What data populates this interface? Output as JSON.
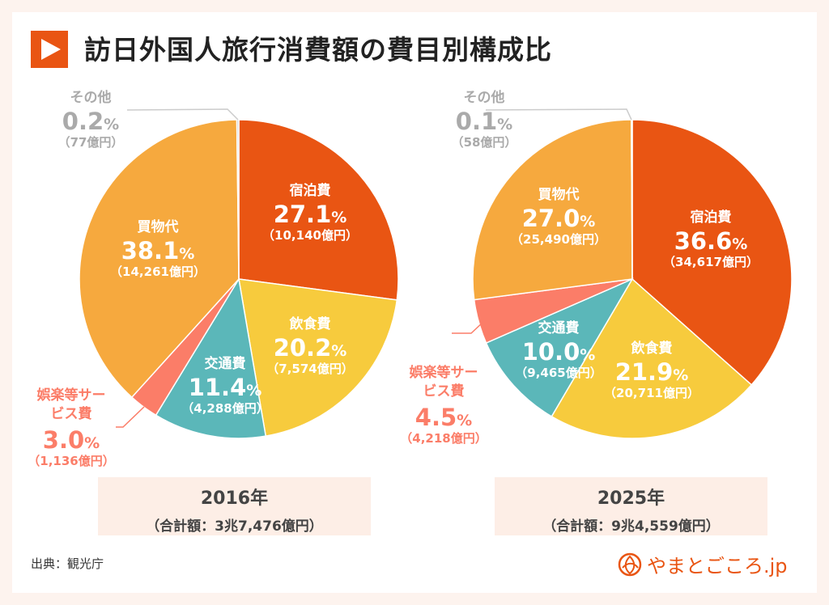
{
  "title": "訪日外国人旅行消費額の費目別構成比",
  "source": "出典：観光庁",
  "logo_text": "やまとごころ.jp",
  "colors": {
    "宿泊費": "#e95513",
    "飲食費": "#f7cb3d",
    "交通費": "#5bb7b9",
    "娯楽等サービス費": "#fb7d68",
    "買物代": "#f6a93e",
    "その他": "#cccccc",
    "accent": "#e95513"
  },
  "chart_data": [
    {
      "type": "pie",
      "year_label": "2016年",
      "total_label": "（合計額：3兆7,476億円）",
      "slices": [
        {
          "name": "宿泊費",
          "percent": 27.1,
          "pct_label": "27.1",
          "amount": "（10,140億円）"
        },
        {
          "name": "飲食費",
          "percent": 20.2,
          "pct_label": "20.2",
          "amount": "（7,574億円）"
        },
        {
          "name": "交通費",
          "percent": 11.4,
          "pct_label": "11.4",
          "amount": "（4,288億円）"
        },
        {
          "name": "娯楽等サービス費",
          "percent": 3.0,
          "pct_label": "3.0",
          "amount": "（1,136億円）"
        },
        {
          "name": "買物代",
          "percent": 38.1,
          "pct_label": "38.1",
          "amount": "（14,261億円）"
        },
        {
          "name": "その他",
          "percent": 0.2,
          "pct_label": "0.2",
          "amount": "（77億円）"
        }
      ]
    },
    {
      "type": "pie",
      "year_label": "2025年",
      "total_label": "（合計額：9兆4,559億円）",
      "slices": [
        {
          "name": "宿泊費",
          "percent": 36.6,
          "pct_label": "36.6",
          "amount": "（34,617億円）"
        },
        {
          "name": "飲食費",
          "percent": 21.9,
          "pct_label": "21.9",
          "amount": "（20,711億円）"
        },
        {
          "name": "交通費",
          "percent": 10.0,
          "pct_label": "10.0",
          "amount": "（9,465億円）"
        },
        {
          "name": "娯楽等サービス費",
          "percent": 4.5,
          "pct_label": "4.5",
          "amount": "（4,218億円）"
        },
        {
          "name": "買物代",
          "percent": 27.0,
          "pct_label": "27.0",
          "amount": "（25,490億円）"
        },
        {
          "name": "その他",
          "percent": 0.1,
          "pct_label": "0.1",
          "amount": "（58億円）"
        }
      ]
    }
  ],
  "unit": "%"
}
